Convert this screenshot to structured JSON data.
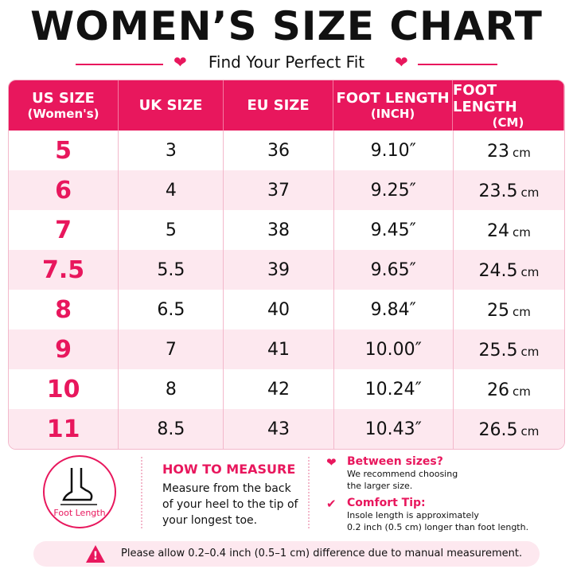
{
  "header": {
    "title": "WOMEN’S SIZE CHART",
    "subtitle": "Find Your Perfect Fit"
  },
  "table": {
    "columns": [
      [
        "US SIZE",
        "(Women's)"
      ],
      [
        "UK SIZE"
      ],
      [
        "EU SIZE"
      ],
      [
        "FOOT LENGTH",
        "(INCH)"
      ],
      [
        "FOOT LENGTH",
        "(CM)"
      ]
    ],
    "rows": [
      [
        "5",
        "3",
        "36",
        "9.10″",
        {
          "value": "23",
          "unit": "cm"
        }
      ],
      [
        "6",
        "4",
        "37",
        "9.25″",
        {
          "value": "23.5",
          "unit": "cm"
        }
      ],
      [
        "7",
        "5",
        "38",
        "9.45″",
        {
          "value": "24",
          "unit": "cm"
        }
      ],
      [
        "7.5",
        "5.5",
        "39",
        "9.65″",
        {
          "value": "24.5",
          "unit": "cm"
        }
      ],
      [
        "8",
        "6.5",
        "40",
        "9.84″",
        {
          "value": "25",
          "unit": "cm"
        }
      ],
      [
        "9",
        "7",
        "41",
        "10.00″",
        {
          "value": "25.5",
          "unit": "cm"
        }
      ],
      [
        "10",
        "8",
        "42",
        "10.24″",
        {
          "value": "26",
          "unit": "cm"
        }
      ],
      [
        "11",
        "8.5",
        "43",
        "10.43″",
        {
          "value": "26.5",
          "unit": "cm"
        }
      ]
    ]
  },
  "measure": {
    "icon_label": "Foot Length",
    "title": "HOW TO MEASURE",
    "lines": [
      "Measure from the back",
      "of your heel to the tip of",
      "your longest toe."
    ]
  },
  "tips": [
    {
      "title": "Between sizes?",
      "lines": [
        "We recommend choosing",
        "the larger size."
      ]
    },
    {
      "title": "Comfort Tip:",
      "lines": [
        "Insole length is approximately",
        "0.2 inch (0.5 cm) longer than foot length."
      ]
    }
  ],
  "note": "Please allow 0.2–0.4 inch (0.5–1 cm) difference due to manual measurement."
}
